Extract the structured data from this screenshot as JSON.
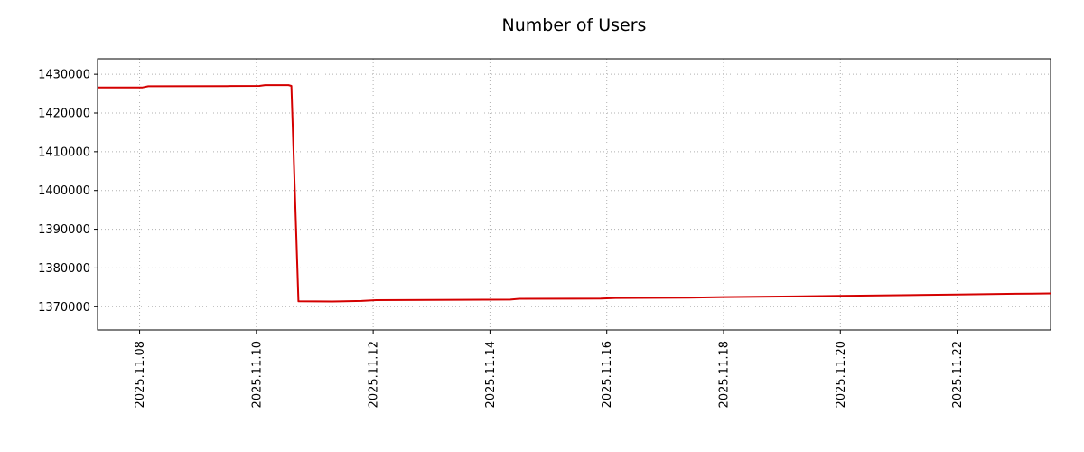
{
  "chart_data": {
    "type": "line",
    "title": "Number of Users",
    "xlabel": "",
    "ylabel": "",
    "grid": true,
    "legend_position": "none",
    "x_unit": "day of month, November 2025",
    "xlim": [
      7.28,
      23.6
    ],
    "ylim": [
      1364000,
      1434000
    ],
    "xticks": {
      "values": [
        8,
        10,
        12,
        14,
        16,
        18,
        20,
        22
      ],
      "labels": [
        "2025.11.08",
        "2025.11.10",
        "2025.11.12",
        "2025.11.14",
        "2025.11.16",
        "2025.11.18",
        "2025.11.20",
        "2025.11.22"
      ]
    },
    "yticks": {
      "values": [
        1370000,
        1380000,
        1390000,
        1400000,
        1410000,
        1420000,
        1430000
      ],
      "labels": [
        "1370000",
        "1380000",
        "1390000",
        "1400000",
        "1410000",
        "1420000",
        "1430000"
      ]
    },
    "series": [
      {
        "name": "number-of-users",
        "color": "#d40000",
        "line_width": 2,
        "points": [
          [
            7.28,
            1426600
          ],
          [
            8.05,
            1426600
          ],
          [
            8.15,
            1426900
          ],
          [
            9.5,
            1426950
          ],
          [
            10.05,
            1427000
          ],
          [
            10.15,
            1427200
          ],
          [
            10.55,
            1427200
          ],
          [
            10.6,
            1427000
          ],
          [
            10.72,
            1371400
          ],
          [
            11.3,
            1371350
          ],
          [
            11.8,
            1371500
          ],
          [
            12.05,
            1371700
          ],
          [
            13.0,
            1371750
          ],
          [
            14.35,
            1371850
          ],
          [
            14.5,
            1372050
          ],
          [
            15.9,
            1372100
          ],
          [
            16.15,
            1372250
          ],
          [
            17.4,
            1372350
          ],
          [
            18.0,
            1372500
          ],
          [
            19.2,
            1372650
          ],
          [
            20.0,
            1372800
          ],
          [
            21.2,
            1373000
          ],
          [
            22.0,
            1373150
          ],
          [
            23.0,
            1373350
          ],
          [
            23.6,
            1373450
          ]
        ]
      }
    ]
  }
}
